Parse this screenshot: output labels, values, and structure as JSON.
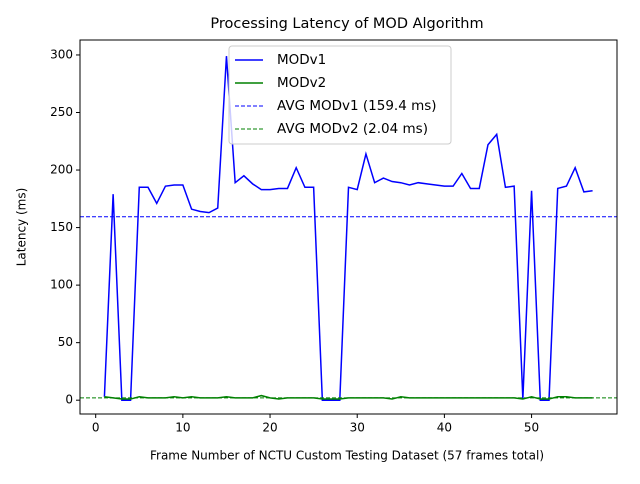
{
  "chart_data": {
    "type": "line",
    "title": "Processing Latency of MOD Algorithm",
    "x_label": "Frame Number of NCTU Custom Testing Dataset (57 frames total)",
    "y_label": "Latency (ms)",
    "x": [
      1,
      2,
      3,
      4,
      5,
      6,
      7,
      8,
      9,
      10,
      11,
      12,
      13,
      14,
      15,
      16,
      17,
      18,
      19,
      20,
      21,
      22,
      23,
      24,
      25,
      26,
      27,
      28,
      29,
      30,
      31,
      32,
      33,
      34,
      35,
      36,
      37,
      38,
      39,
      40,
      41,
      42,
      43,
      44,
      45,
      46,
      47,
      48,
      49,
      50,
      51,
      52,
      53,
      54,
      55,
      56,
      57
    ],
    "series": [
      {
        "name": "MODv1",
        "color": "#0000ff",
        "values": [
          3,
          179,
          0,
          0,
          185,
          185,
          171,
          186,
          187,
          187,
          166,
          164,
          163,
          167,
          299,
          189,
          195,
          188,
          183,
          183,
          184,
          184,
          202,
          185,
          185,
          0,
          0,
          0,
          185,
          183,
          214,
          189,
          193,
          190,
          189,
          187,
          189,
          188,
          187,
          186,
          186,
          197,
          184,
          184,
          222,
          231,
          185,
          186,
          1,
          182,
          0,
          0,
          184,
          186,
          202,
          181,
          182
        ]
      },
      {
        "name": "MODv2",
        "color": "#008000",
        "values": [
          3,
          2,
          1,
          1,
          3,
          2,
          2,
          2,
          3,
          2,
          3,
          2,
          2,
          2,
          3,
          2,
          2,
          2,
          4,
          2,
          1,
          2,
          2,
          2,
          2,
          1,
          1,
          1,
          2,
          2,
          2,
          2,
          2,
          1,
          3,
          2,
          2,
          2,
          2,
          2,
          2,
          2,
          2,
          2,
          2,
          2,
          2,
          2,
          1,
          3,
          1,
          1,
          3,
          3,
          2,
          2,
          2
        ]
      }
    ],
    "reference_lines": [
      {
        "name": "AVG MODv1 (159.4 ms)",
        "color": "#0000ff",
        "value": 159.4
      },
      {
        "name": "AVG MODv2 (2.04 ms)",
        "color": "#008000",
        "value": 2.04
      }
    ],
    "xlim": [
      -1.8,
      59.8
    ],
    "ylim": [
      -12,
      313
    ],
    "xticks": [
      0,
      10,
      20,
      30,
      40,
      50
    ],
    "yticks": [
      0,
      50,
      100,
      150,
      200,
      250,
      300
    ],
    "legend": "upper center"
  }
}
